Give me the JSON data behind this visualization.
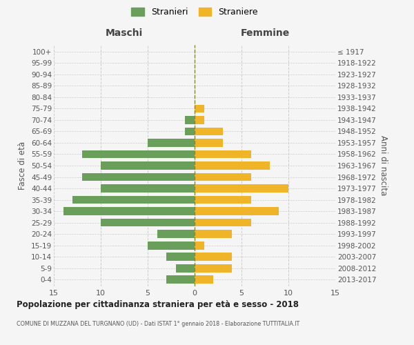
{
  "age_groups": [
    "0-4",
    "5-9",
    "10-14",
    "15-19",
    "20-24",
    "25-29",
    "30-34",
    "35-39",
    "40-44",
    "45-49",
    "50-54",
    "55-59",
    "60-64",
    "65-69",
    "70-74",
    "75-79",
    "80-84",
    "85-89",
    "90-94",
    "95-99",
    "100+"
  ],
  "birth_years": [
    "2013-2017",
    "2008-2012",
    "2003-2007",
    "1998-2002",
    "1993-1997",
    "1988-1992",
    "1983-1987",
    "1978-1982",
    "1973-1977",
    "1968-1972",
    "1963-1967",
    "1958-1962",
    "1953-1957",
    "1948-1952",
    "1943-1947",
    "1938-1942",
    "1933-1937",
    "1928-1932",
    "1923-1927",
    "1918-1922",
    "≤ 1917"
  ],
  "males": [
    3,
    2,
    3,
    5,
    4,
    10,
    14,
    13,
    10,
    12,
    10,
    12,
    5,
    1,
    1,
    0,
    0,
    0,
    0,
    0,
    0
  ],
  "females": [
    2,
    4,
    4,
    1,
    4,
    6,
    9,
    6,
    10,
    6,
    8,
    6,
    3,
    3,
    1,
    1,
    0,
    0,
    0,
    0,
    0
  ],
  "male_color": "#6a9e5b",
  "female_color": "#f0b429",
  "background_color": "#f5f5f5",
  "grid_color": "#cccccc",
  "zero_line_color": "#888833",
  "title": "Popolazione per cittadinanza straniera per età e sesso - 2018",
  "subtitle": "COMUNE DI MUZZANA DEL TURGNANO (UD) - Dati ISTAT 1° gennaio 2018 - Elaborazione TUTTITALIA.IT",
  "left_header": "Maschi",
  "right_header": "Femmine",
  "ylabel": "Fasce di età",
  "right_ylabel": "Anni di nascita",
  "xlim": 15,
  "legend_labels": [
    "Stranieri",
    "Straniere"
  ]
}
